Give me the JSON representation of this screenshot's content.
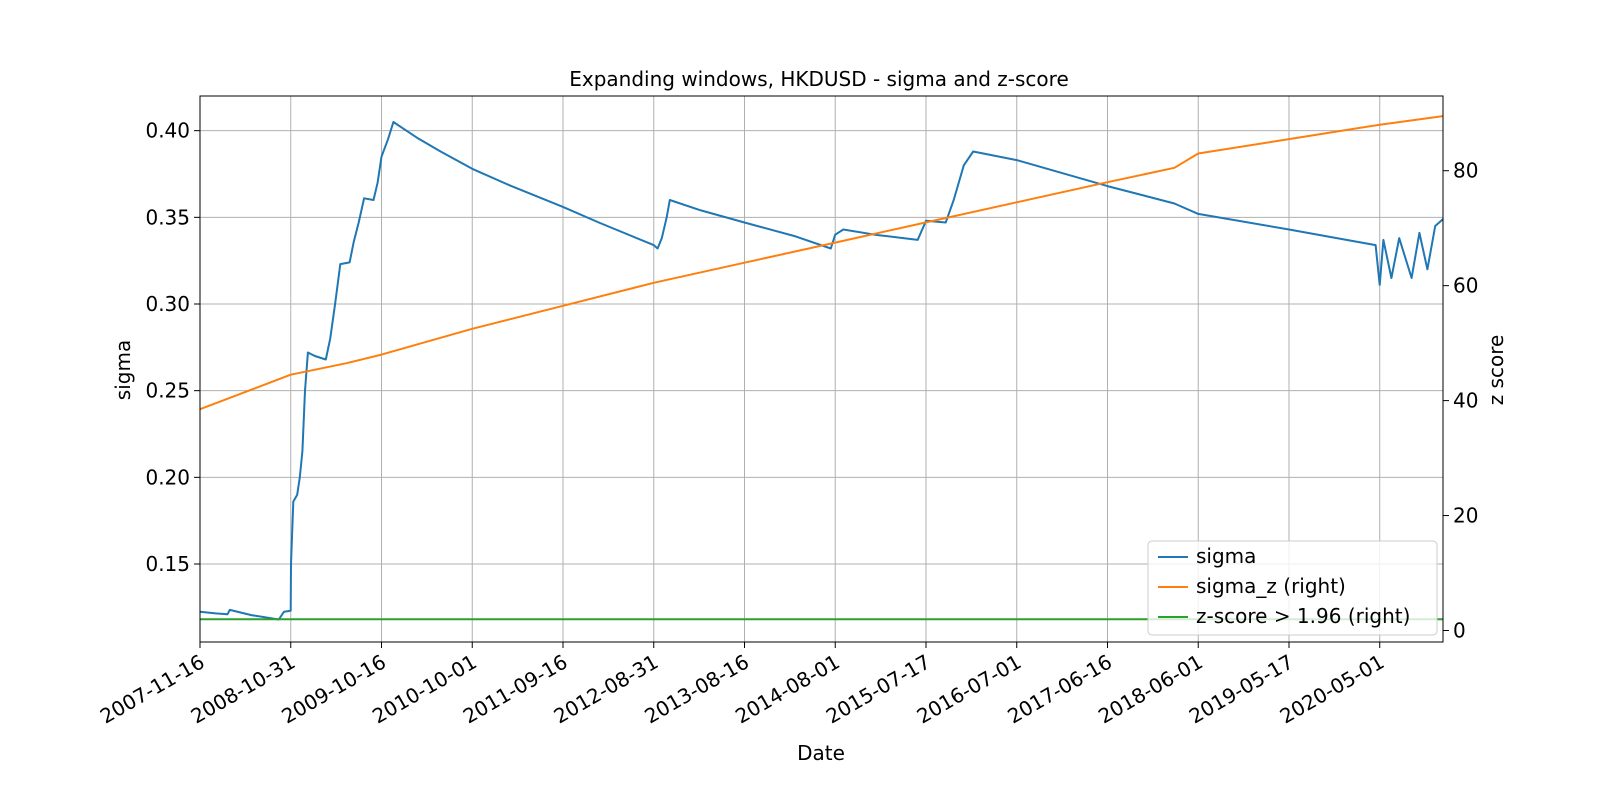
{
  "chart_data": {
    "type": "line",
    "title": "Expanding windows, HKDUSD - sigma and z-score",
    "xlabel": "Date",
    "ylabel": "sigma",
    "ylabel_right": "z score",
    "x_ticks": [
      "2007-11-16",
      "2008-10-31",
      "2009-10-16",
      "2010-10-01",
      "2011-09-16",
      "2012-08-31",
      "2013-08-16",
      "2014-08-01",
      "2015-07-17",
      "2016-07-01",
      "2017-06-16",
      "2018-06-01",
      "2019-05-17",
      "2020-05-01"
    ],
    "x_range": [
      "2007-11-16",
      "2020-12-31"
    ],
    "y_ticks": [
      "0.15",
      "0.20",
      "0.25",
      "0.30",
      "0.35",
      "0.40"
    ],
    "ylim": [
      0.105,
      0.42
    ],
    "y_ticks_right": [
      "0",
      "20",
      "40",
      "60",
      "80"
    ],
    "ylim_right": [
      -2,
      93
    ],
    "grid": true,
    "legend_position": "lower-right",
    "series": [
      {
        "name": "sigma",
        "axis": "left",
        "color": "#1f77b4",
        "points": [
          [
            "2007-11-16",
            0.1225
          ],
          [
            "2008-01-15",
            0.1215
          ],
          [
            "2008-03-01",
            0.121
          ],
          [
            "2008-03-10",
            0.1235
          ],
          [
            "2008-06-01",
            0.1205
          ],
          [
            "2008-09-15",
            0.118
          ],
          [
            "2008-10-05",
            0.1225
          ],
          [
            "2008-10-31",
            0.123
          ],
          [
            "2008-11-01",
            0.15
          ],
          [
            "2008-11-10",
            0.186
          ],
          [
            "2008-11-25",
            0.19
          ],
          [
            "2008-12-05",
            0.2
          ],
          [
            "2008-12-15",
            0.215
          ],
          [
            "2008-12-25",
            0.25
          ],
          [
            "2009-01-05",
            0.272
          ],
          [
            "2009-02-01",
            0.27
          ],
          [
            "2009-03-15",
            0.268
          ],
          [
            "2009-04-01",
            0.28
          ],
          [
            "2009-04-20",
            0.3
          ],
          [
            "2009-05-10",
            0.323
          ],
          [
            "2009-06-15",
            0.324
          ],
          [
            "2009-07-01",
            0.336
          ],
          [
            "2009-07-20",
            0.347
          ],
          [
            "2009-08-10",
            0.361
          ],
          [
            "2009-09-15",
            0.36
          ],
          [
            "2009-10-01",
            0.37
          ],
          [
            "2009-10-16",
            0.385
          ],
          [
            "2009-11-10",
            0.395
          ],
          [
            "2009-12-01",
            0.405
          ],
          [
            "2010-03-01",
            0.396
          ],
          [
            "2010-06-01",
            0.388
          ],
          [
            "2010-10-01",
            0.378
          ],
          [
            "2011-03-01",
            0.368
          ],
          [
            "2011-09-16",
            0.356
          ],
          [
            "2012-02-01",
            0.347
          ],
          [
            "2012-08-31",
            0.334
          ],
          [
            "2012-09-15",
            0.332
          ],
          [
            "2012-10-01",
            0.338
          ],
          [
            "2012-10-20",
            0.35
          ],
          [
            "2012-11-01",
            0.36
          ],
          [
            "2013-03-01",
            0.354
          ],
          [
            "2013-08-16",
            0.347
          ],
          [
            "2014-03-01",
            0.339
          ],
          [
            "2014-07-15",
            0.332
          ],
          [
            "2014-08-01",
            0.34
          ],
          [
            "2014-09-01",
            0.343
          ],
          [
            "2015-01-01",
            0.34
          ],
          [
            "2015-06-15",
            0.337
          ],
          [
            "2015-07-17",
            0.348
          ],
          [
            "2015-10-01",
            0.347
          ],
          [
            "2015-11-01",
            0.36
          ],
          [
            "2015-12-10",
            0.38
          ],
          [
            "2016-01-15",
            0.388
          ],
          [
            "2016-07-01",
            0.383
          ],
          [
            "2017-06-16",
            0.368
          ],
          [
            "2018-03-01",
            0.358
          ],
          [
            "2018-06-01",
            0.352
          ],
          [
            "2019-05-17",
            0.343
          ],
          [
            "2020-04-15",
            0.334
          ],
          [
            "2020-05-01",
            0.311
          ],
          [
            "2020-05-15",
            0.337
          ],
          [
            "2020-06-15",
            0.315
          ],
          [
            "2020-07-15",
            0.338
          ],
          [
            "2020-09-01",
            0.315
          ],
          [
            "2020-10-01",
            0.341
          ],
          [
            "2020-11-01",
            0.32
          ],
          [
            "2020-12-01",
            0.345
          ],
          [
            "2020-12-31",
            0.349
          ]
        ]
      },
      {
        "name": "sigma_z (right)",
        "axis": "right",
        "color": "#ff7f0e",
        "points": [
          [
            "2007-11-16",
            38.5
          ],
          [
            "2008-10-31",
            44.5
          ],
          [
            "2009-06-01",
            46.5
          ],
          [
            "2009-10-16",
            48.0
          ],
          [
            "2010-10-01",
            52.5
          ],
          [
            "2011-09-16",
            56.5
          ],
          [
            "2012-08-31",
            60.5
          ],
          [
            "2013-08-16",
            64.0
          ],
          [
            "2014-08-01",
            67.5
          ],
          [
            "2015-07-17",
            71.0
          ],
          [
            "2016-07-01",
            74.5
          ],
          [
            "2017-06-16",
            78.0
          ],
          [
            "2018-03-01",
            80.5
          ],
          [
            "2018-06-01",
            83.0
          ],
          [
            "2019-05-17",
            85.5
          ],
          [
            "2020-05-01",
            88.0
          ],
          [
            "2020-12-31",
            89.5
          ]
        ]
      },
      {
        "name": "z-score > 1.96 (right)",
        "axis": "right",
        "color": "#2ca02c",
        "points": [
          [
            "2007-11-16",
            1.96
          ],
          [
            "2020-12-31",
            1.96
          ]
        ]
      }
    ]
  }
}
